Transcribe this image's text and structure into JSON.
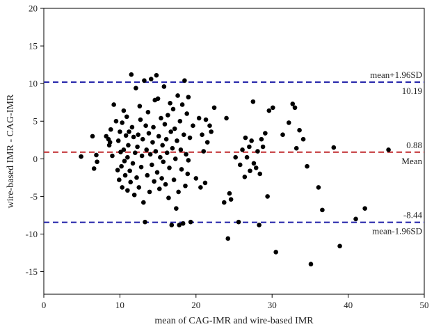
{
  "chart_data": {
    "type": "scatter",
    "xlabel": "mean of CAG-IMR and wire-based IMR",
    "ylabel": "wire-based IMR - CAG-IMR",
    "xlim": [
      0,
      50
    ],
    "ylim": [
      -18,
      20
    ],
    "x_ticks": [
      0,
      10,
      20,
      30,
      40,
      50
    ],
    "y_ticks": [
      -15,
      -10,
      -5,
      0,
      5,
      10,
      15,
      20
    ],
    "grid": false,
    "reference_lines": [
      {
        "key": "upper",
        "value": 10.19,
        "color": "#1f1fa8",
        "label_top": "mean+1.96SD",
        "label_bottom": "10.19"
      },
      {
        "key": "mean",
        "value": 0.88,
        "color": "#c0282d",
        "label_top": "0.88",
        "label_bottom": "Mean"
      },
      {
        "key": "lower",
        "value": -8.44,
        "color": "#1f1fa8",
        "label_top": "-8.44",
        "label_bottom": "mean-1.96SD"
      }
    ],
    "points": [
      [
        4.9,
        0.3
      ],
      [
        6.4,
        3.0
      ],
      [
        6.6,
        -1.3
      ],
      [
        6.9,
        0.5
      ],
      [
        7.0,
        -0.4
      ],
      [
        8.2,
        3.0
      ],
      [
        8.5,
        2.6
      ],
      [
        8.6,
        1.8
      ],
      [
        8.7,
        2.2
      ],
      [
        8.8,
        3.9
      ],
      [
        9.0,
        0.4
      ],
      [
        9.2,
        7.2
      ],
      [
        9.5,
        5.0
      ],
      [
        9.7,
        -1.5
      ],
      [
        9.8,
        2.4
      ],
      [
        9.9,
        -2.8
      ],
      [
        10.0,
        3.6
      ],
      [
        10.1,
        0.9
      ],
      [
        10.2,
        -1.0
      ],
      [
        10.3,
        4.8
      ],
      [
        10.3,
        -3.8
      ],
      [
        10.5,
        6.4
      ],
      [
        10.5,
        1.2
      ],
      [
        10.6,
        -0.3
      ],
      [
        10.7,
        -2.2
      ],
      [
        10.8,
        3.1
      ],
      [
        10.9,
        5.6
      ],
      [
        11.0,
        -4.2
      ],
      [
        11.0,
        0.2
      ],
      [
        11.1,
        1.8
      ],
      [
        11.2,
        3.6
      ],
      [
        11.3,
        -1.6
      ],
      [
        11.4,
        -3.1
      ],
      [
        11.5,
        11.2
      ],
      [
        11.6,
        4.2
      ],
      [
        11.7,
        -0.6
      ],
      [
        11.8,
        2.9
      ],
      [
        11.9,
        -4.8
      ],
      [
        12.0,
        0.8
      ],
      [
        12.1,
        9.4
      ],
      [
        12.2,
        -2.5
      ],
      [
        12.3,
        1.6
      ],
      [
        12.4,
        3.2
      ],
      [
        12.5,
        -3.8
      ],
      [
        12.6,
        7.0
      ],
      [
        12.7,
        5.2
      ],
      [
        12.8,
        -1.1
      ],
      [
        12.9,
        0.4
      ],
      [
        13.0,
        2.6
      ],
      [
        13.1,
        -5.8
      ],
      [
        13.2,
        10.4
      ],
      [
        13.3,
        -8.4
      ],
      [
        13.4,
        4.4
      ],
      [
        13.5,
        1.2
      ],
      [
        13.6,
        -2.2
      ],
      [
        13.7,
        6.2
      ],
      [
        13.8,
        3.4
      ],
      [
        13.9,
        -4.4
      ],
      [
        14.0,
        0.6
      ],
      [
        14.1,
        10.6
      ],
      [
        14.2,
        -0.8
      ],
      [
        14.3,
        2.2
      ],
      [
        14.4,
        4.2
      ],
      [
        14.5,
        -3.0
      ],
      [
        14.6,
        7.8
      ],
      [
        14.7,
        1.0
      ],
      [
        14.8,
        11.1
      ],
      [
        14.9,
        -1.8
      ],
      [
        15.0,
        8.0
      ],
      [
        15.1,
        3.0
      ],
      [
        15.2,
        -4.0
      ],
      [
        15.3,
        0.2
      ],
      [
        15.4,
        5.4
      ],
      [
        15.5,
        -2.6
      ],
      [
        15.6,
        1.8
      ],
      [
        15.7,
        -0.4
      ],
      [
        15.8,
        9.6
      ],
      [
        15.9,
        4.6
      ],
      [
        16.0,
        -3.4
      ],
      [
        16.1,
        2.6
      ],
      [
        16.2,
        0.8
      ],
      [
        16.3,
        5.8
      ],
      [
        16.4,
        -5.2
      ],
      [
        16.5,
        -1.2
      ],
      [
        16.6,
        7.4
      ],
      [
        16.7,
        3.6
      ],
      [
        16.8,
        -8.8
      ],
      [
        16.9,
        1.4
      ],
      [
        17.0,
        6.6
      ],
      [
        17.1,
        -2.8
      ],
      [
        17.2,
        4.0
      ],
      [
        17.3,
        0.0
      ],
      [
        17.4,
        -6.6
      ],
      [
        17.5,
        2.4
      ],
      [
        17.6,
        8.4
      ],
      [
        17.7,
        -4.4
      ],
      [
        17.8,
        -8.8
      ],
      [
        17.9,
        5.0
      ],
      [
        18.0,
        1.2
      ],
      [
        18.1,
        -1.4
      ],
      [
        18.2,
        7.2
      ],
      [
        18.3,
        -8.6
      ],
      [
        18.4,
        3.2
      ],
      [
        18.5,
        10.4
      ],
      [
        18.6,
        -3.6
      ],
      [
        18.7,
        0.6
      ],
      [
        18.8,
        6.0
      ],
      [
        18.9,
        -2.0
      ],
      [
        19.0,
        8.2
      ],
      [
        19.0,
        -0.2
      ],
      [
        19.2,
        2.8
      ],
      [
        19.3,
        -8.4
      ],
      [
        19.6,
        4.4
      ],
      [
        20.0,
        -2.6
      ],
      [
        20.4,
        5.4
      ],
      [
        20.6,
        -3.8
      ],
      [
        20.8,
        3.2
      ],
      [
        21.0,
        1.0
      ],
      [
        21.2,
        -3.2
      ],
      [
        21.3,
        5.2
      ],
      [
        21.5,
        2.2
      ],
      [
        21.8,
        4.4
      ],
      [
        22.0,
        3.6
      ],
      [
        22.4,
        6.8
      ],
      [
        23.7,
        -5.8
      ],
      [
        24.0,
        5.4
      ],
      [
        24.2,
        -10.6
      ],
      [
        24.4,
        -4.6
      ],
      [
        24.6,
        -5.4
      ],
      [
        25.2,
        0.2
      ],
      [
        25.6,
        -8.4
      ],
      [
        25.8,
        -0.8
      ],
      [
        26.1,
        1.2
      ],
      [
        26.4,
        -2.4
      ],
      [
        26.5,
        2.8
      ],
      [
        26.7,
        0.2
      ],
      [
        27.0,
        1.6
      ],
      [
        27.1,
        -1.6
      ],
      [
        27.3,
        2.4
      ],
      [
        27.5,
        7.6
      ],
      [
        27.6,
        -0.6
      ],
      [
        27.9,
        -1.2
      ],
      [
        28.1,
        1.0
      ],
      [
        28.3,
        -8.8
      ],
      [
        28.4,
        -2.0
      ],
      [
        28.6,
        2.6
      ],
      [
        28.8,
        1.6
      ],
      [
        29.1,
        3.4
      ],
      [
        29.4,
        -5.0
      ],
      [
        29.6,
        6.4
      ],
      [
        30.1,
        6.8
      ],
      [
        30.5,
        -12.4
      ],
      [
        31.4,
        3.2
      ],
      [
        32.2,
        4.8
      ],
      [
        32.7,
        7.3
      ],
      [
        33.0,
        6.8
      ],
      [
        33.2,
        1.4
      ],
      [
        33.6,
        3.8
      ],
      [
        34.1,
        2.6
      ],
      [
        34.6,
        -1.0
      ],
      [
        35.1,
        -14.0
      ],
      [
        36.1,
        -3.8
      ],
      [
        36.6,
        -6.8
      ],
      [
        38.1,
        1.5
      ],
      [
        38.9,
        -11.6
      ],
      [
        41.0,
        -8.0
      ],
      [
        42.2,
        -6.6
      ],
      [
        45.3,
        1.2
      ]
    ]
  }
}
